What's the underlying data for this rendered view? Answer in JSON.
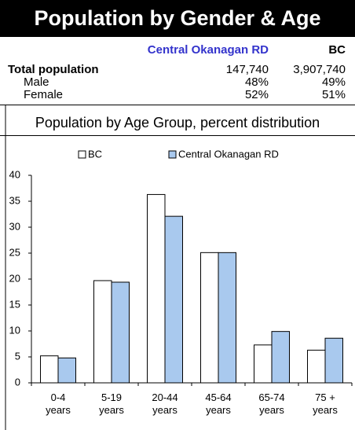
{
  "header": {
    "title": "Population by Gender & Age"
  },
  "table": {
    "columns": [
      "Central Okanagan RD",
      "BC"
    ],
    "rows": [
      [
        "Total population",
        "147,740",
        "3,907,740"
      ],
      [
        "Male",
        "48%",
        "49%"
      ],
      [
        "Female",
        "52%",
        "51%"
      ]
    ]
  },
  "chart_data": {
    "type": "bar",
    "title": "Population by Age Group, percent distribution",
    "categories": [
      "0-4 years",
      "5-19 years",
      "20-44 years",
      "45-64 years",
      "65-74 years",
      "75 + years"
    ],
    "series": [
      {
        "name": "BC",
        "color": "#ffffff",
        "values": [
          5.2,
          19.7,
          36.3,
          25.1,
          7.3,
          6.3
        ]
      },
      {
        "name": "Central Okanagan RD",
        "color": "#a9c9ee",
        "values": [
          4.8,
          19.4,
          32.1,
          25.1,
          9.9,
          8.6
        ]
      }
    ],
    "ylim": [
      0,
      40
    ],
    "yticks": [
      0,
      5,
      10,
      15,
      20,
      25,
      30,
      35,
      40
    ],
    "grid": false,
    "legend": "top"
  }
}
